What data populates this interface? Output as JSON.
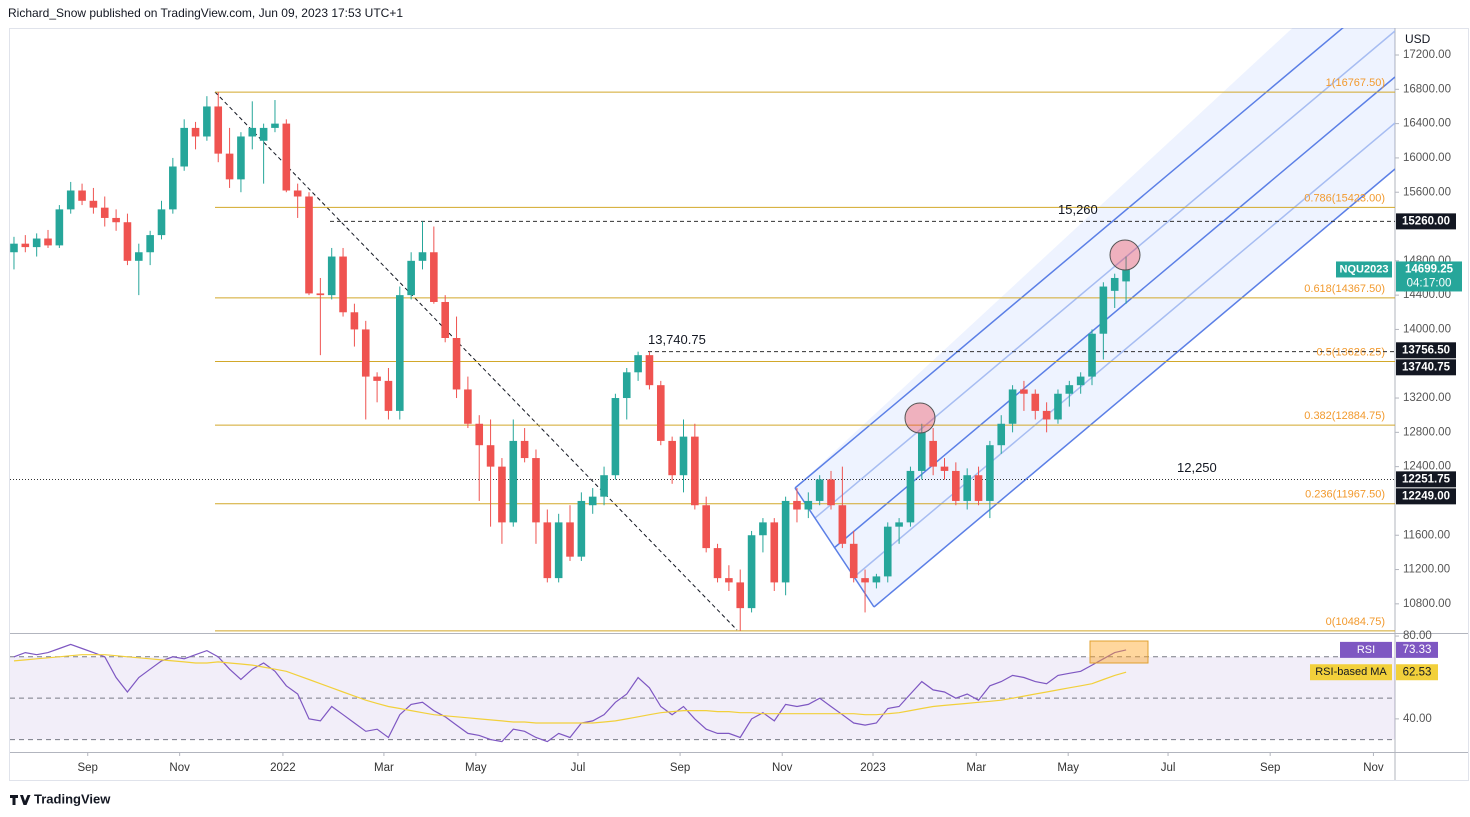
{
  "header": {
    "credit": "Richard_Snow published on TradingView.com, Jun 09, 2023 17:53 UTC+1",
    "brand": "TradingView"
  },
  "chart_data": [
    {
      "type": "candlestick",
      "currency": "USD",
      "symbol": "NQU2023",
      "up_color": "#26a69a",
      "down_color": "#ef5350",
      "ohlc": [
        [
          14900,
          15080,
          14700,
          15000
        ],
        [
          15000,
          15100,
          14900,
          14960
        ],
        [
          14960,
          15120,
          14850,
          15060
        ],
        [
          15060,
          15160,
          14950,
          14980
        ],
        [
          14980,
          15450,
          14950,
          15400
        ],
        [
          15400,
          15720,
          15350,
          15620
        ],
        [
          15620,
          15700,
          15450,
          15500
        ],
        [
          15500,
          15650,
          15350,
          15420
        ],
        [
          15420,
          15550,
          15200,
          15300
        ],
        [
          15300,
          15400,
          15150,
          15250
        ],
        [
          15250,
          15350,
          14750,
          14800
        ],
        [
          14800,
          15000,
          14400,
          14900
        ],
        [
          14900,
          15150,
          14750,
          15100
        ],
        [
          15100,
          15500,
          15050,
          15400
        ],
        [
          15400,
          16000,
          15350,
          15900
        ],
        [
          15900,
          16450,
          15850,
          16350
        ],
        [
          16350,
          16420,
          16100,
          16250
        ],
        [
          16250,
          16720,
          16200,
          16600
        ],
        [
          16600,
          16767.5,
          15950,
          16050
        ],
        [
          16050,
          16350,
          15650,
          15750
        ],
        [
          15750,
          16300,
          15600,
          16250
        ],
        [
          16250,
          16660,
          16100,
          16350
        ],
        [
          16200,
          16400,
          15700,
          16350
        ],
        [
          16350,
          16675,
          16300,
          16400
        ],
        [
          16400,
          16450,
          15600,
          15620
        ],
        [
          15620,
          15700,
          15300,
          15550
        ],
        [
          15550,
          15600,
          14400,
          14420
        ],
        [
          14420,
          14600,
          13700,
          14400
        ],
        [
          14400,
          14950,
          14350,
          14850
        ],
        [
          14850,
          14950,
          14150,
          14200
        ],
        [
          14200,
          14300,
          13800,
          14000
        ],
        [
          14000,
          14100,
          12950,
          13450
        ],
        [
          13450,
          13500,
          13150,
          13400
        ],
        [
          13400,
          13550,
          12950,
          13050
        ],
        [
          13050,
          14500,
          12950,
          14400
        ],
        [
          14400,
          14900,
          14350,
          14800
        ],
        [
          14800,
          15260,
          14700,
          14900
        ],
        [
          14900,
          15200,
          14300,
          14320
        ],
        [
          14320,
          14400,
          13850,
          13900
        ],
        [
          13900,
          14150,
          13200,
          13300
        ],
        [
          13300,
          13450,
          12850,
          12900
        ],
        [
          12900,
          13000,
          12000,
          12650
        ],
        [
          12650,
          12950,
          11700,
          12400
        ],
        [
          12400,
          12500,
          11500,
          11750
        ],
        [
          11750,
          12950,
          11700,
          12700
        ],
        [
          12700,
          12850,
          12450,
          12500
        ],
        [
          12500,
          12600,
          11500,
          11750
        ],
        [
          11750,
          11900,
          11050,
          11100
        ],
        [
          11100,
          11850,
          11050,
          11750
        ],
        [
          11750,
          11950,
          11300,
          11350
        ],
        [
          11350,
          12100,
          11300,
          12000
        ],
        [
          11950,
          12150,
          11850,
          12050
        ],
        [
          12050,
          12400,
          11950,
          12300
        ],
        [
          12300,
          13250,
          12250,
          13200
        ],
        [
          13200,
          13550,
          12950,
          13500
        ],
        [
          13500,
          13740.75,
          13400,
          13700
        ],
        [
          13700,
          13740,
          13300,
          13350
        ],
        [
          13350,
          13400,
          12650,
          12700
        ],
        [
          12700,
          12750,
          12200,
          12300
        ],
        [
          12300,
          12950,
          12100,
          12750
        ],
        [
          12750,
          12900,
          11900,
          11950
        ],
        [
          11950,
          12050,
          11400,
          11450
        ],
        [
          11450,
          11500,
          11050,
          11100
        ],
        [
          11100,
          11250,
          10950,
          11050
        ],
        [
          11050,
          11200,
          10484.75,
          10750
        ],
        [
          10750,
          11650,
          10700,
          11600
        ],
        [
          11600,
          11800,
          11400,
          11750
        ],
        [
          11750,
          11800,
          10950,
          11050
        ],
        [
          11050,
          12050,
          10900,
          12000
        ],
        [
          12000,
          12150,
          11750,
          11900
        ],
        [
          11900,
          12100,
          11800,
          12000
        ],
        [
          12000,
          12300,
          11950,
          12250
        ],
        [
          12250,
          12350,
          11900,
          11950
        ],
        [
          11950,
          12400,
          11450,
          11500
        ],
        [
          11500,
          11650,
          11050,
          11100
        ],
        [
          11100,
          11200,
          10700,
          11050
        ],
        [
          11050,
          11150,
          10980,
          11120
        ],
        [
          11120,
          11750,
          11050,
          11700
        ],
        [
          11700,
          11800,
          11500,
          11750
        ],
        [
          11750,
          12400,
          11700,
          12350
        ],
        [
          12350,
          12900,
          12250,
          12800
        ],
        [
          12700,
          12850,
          12300,
          12400
        ],
        [
          12400,
          12500,
          12250,
          12350
        ],
        [
          12350,
          12450,
          11950,
          12000
        ],
        [
          12000,
          12380,
          11900,
          12300
        ],
        [
          12300,
          12400,
          11950,
          12000
        ],
        [
          12000,
          12700,
          11800,
          12650
        ],
        [
          12650,
          13000,
          12550,
          12900
        ],
        [
          12900,
          13350,
          12800,
          13300
        ],
        [
          13300,
          13400,
          13050,
          13250
        ],
        [
          13250,
          13300,
          12950,
          13050
        ],
        [
          13050,
          13150,
          12800,
          12950
        ],
        [
          12950,
          13300,
          12900,
          13250
        ],
        [
          13250,
          13400,
          13100,
          13350
        ],
        [
          13350,
          13500,
          13250,
          13450
        ],
        [
          13450,
          14000,
          13350,
          13950
        ],
        [
          13950,
          14550,
          13650,
          14500
        ],
        [
          14450,
          14650,
          14250,
          14600
        ],
        [
          14560,
          14850,
          14300,
          14699.25
        ]
      ],
      "xlim": [
        -0.35,
        121.7
      ],
      "xticks": [
        {
          "value": 6.5,
          "label": "Sep"
        },
        {
          "value": 14.6,
          "label": "Nov"
        },
        {
          "value": 23.7,
          "label": "2022"
        },
        {
          "value": 32.6,
          "label": "Mar"
        },
        {
          "value": 40.7,
          "label": "May"
        },
        {
          "value": 49.7,
          "label": "Jul"
        },
        {
          "value": 58.7,
          "label": "Sep"
        },
        {
          "value": 67.7,
          "label": "Nov"
        },
        {
          "value": 75.7,
          "label": "2023"
        },
        {
          "value": 84.8,
          "label": "Mar"
        },
        {
          "value": 92.9,
          "label": "May"
        },
        {
          "value": 101.7,
          "label": "Jul"
        },
        {
          "value": 110.7,
          "label": "Sep"
        },
        {
          "value": 119.8,
          "label": "Nov"
        }
      ],
      "ylim": [
        10460,
        17515
      ],
      "yticks": [
        {
          "value": 17200,
          "label": "17200.00"
        },
        {
          "value": 16800,
          "label": "16800.00"
        },
        {
          "value": 16400,
          "label": "16400.00"
        },
        {
          "value": 16000,
          "label": "16000.00"
        },
        {
          "value": 15600,
          "label": "15600.00"
        },
        {
          "value": 14800,
          "label": "14800.00"
        },
        {
          "value": 14400,
          "label": "14400.00"
        },
        {
          "value": 14000,
          "label": "14000.00"
        },
        {
          "value": 13200,
          "label": "13200.00"
        },
        {
          "value": 12800,
          "label": "12800.00"
        },
        {
          "value": 12400,
          "label": "12400.00"
        },
        {
          "value": 11600,
          "label": "11600.00"
        },
        {
          "value": 11200,
          "label": "11200.00"
        },
        {
          "value": 10800,
          "label": "10800.00"
        }
      ],
      "fib_levels": [
        {
          "value": 16767.5,
          "label": "1(16767.50)"
        },
        {
          "value": 15423,
          "label": "0.786(15423.00)"
        },
        {
          "value": 14367.5,
          "label": "0.618(14367.50)"
        },
        {
          "value": 13626.25,
          "label": "0.5(13626.25)"
        },
        {
          "value": 12884.75,
          "label": "0.382(12884.75)"
        },
        {
          "value": 11967.5,
          "label": "0.236(11967.50)"
        },
        {
          "value": 10484.75,
          "label": "0(10484.75)"
        }
      ],
      "levels": [
        {
          "value": 15260,
          "label": "15,260"
        },
        {
          "value": 13740.75,
          "label": "13,740.75"
        },
        {
          "value": 12250,
          "label": "12,250"
        }
      ],
      "price_tags": [
        {
          "value": 15260,
          "label": "15260.00"
        },
        {
          "value": 13756.5,
          "label": "13756.50"
        },
        {
          "value": 13740.75,
          "label": "13740.75"
        },
        {
          "value": 12251.75,
          "label": "12251.75"
        },
        {
          "value": 12249,
          "label": "12249.00"
        }
      ],
      "countdown": "04:17:00"
    },
    {
      "type": "line",
      "series": [
        {
          "name": "RSI",
          "color": "#7e57c2",
          "values": [
            70,
            72,
            71,
            72,
            74,
            76,
            74,
            72,
            70,
            60,
            53,
            60,
            64,
            68,
            70,
            69,
            71,
            73,
            70,
            64,
            59,
            64,
            67,
            63,
            56,
            52,
            40,
            39,
            46,
            42,
            38,
            34,
            35,
            31,
            42,
            47,
            48,
            44,
            41,
            37,
            33,
            32,
            30,
            29,
            35,
            34,
            31,
            29,
            33,
            31,
            38,
            39,
            42,
            48,
            52,
            60,
            55,
            46,
            42,
            46,
            40,
            35,
            33,
            33,
            31,
            40,
            43,
            39,
            47,
            46,
            47,
            50,
            46,
            42,
            38,
            37,
            38,
            45,
            46,
            52,
            58,
            54,
            53,
            50,
            52,
            49,
            56,
            58,
            61,
            60,
            58,
            57,
            61,
            62,
            63,
            66,
            69,
            72,
            73.33
          ]
        },
        {
          "name": "RSI-based MA",
          "color": "#f2d03b",
          "values": [
            68,
            68.5,
            69,
            69.5,
            70,
            70.5,
            71,
            71,
            71,
            70.5,
            70,
            69.5,
            69,
            68.5,
            68,
            67.5,
            67,
            67,
            67.5,
            67,
            66.5,
            66,
            65,
            64,
            63,
            61,
            59,
            57,
            55,
            53,
            51,
            49,
            47.5,
            46,
            45,
            44,
            43,
            42,
            41.5,
            41,
            40.5,
            40,
            39.5,
            39,
            38.5,
            38.5,
            38,
            38,
            38,
            38,
            38,
            38,
            38.5,
            39,
            40,
            41,
            42,
            43,
            43.5,
            44,
            44,
            44,
            43.5,
            43.5,
            43,
            43,
            42.5,
            42.5,
            42.5,
            42.5,
            42.5,
            42.5,
            42.5,
            42.5,
            42.5,
            42,
            42,
            42.5,
            43,
            44,
            45,
            46,
            46.5,
            47,
            47.5,
            48,
            48.5,
            49,
            50,
            51,
            52,
            53,
            54,
            55,
            56,
            57,
            59,
            61,
            62.53
          ]
        }
      ],
      "ylim": [
        24,
        81
      ],
      "yticks": [
        {
          "value": 80,
          "label": "80.00"
        },
        {
          "value": 40,
          "label": "40.00"
        }
      ],
      "levels": [
        70,
        50,
        30
      ]
    }
  ]
}
